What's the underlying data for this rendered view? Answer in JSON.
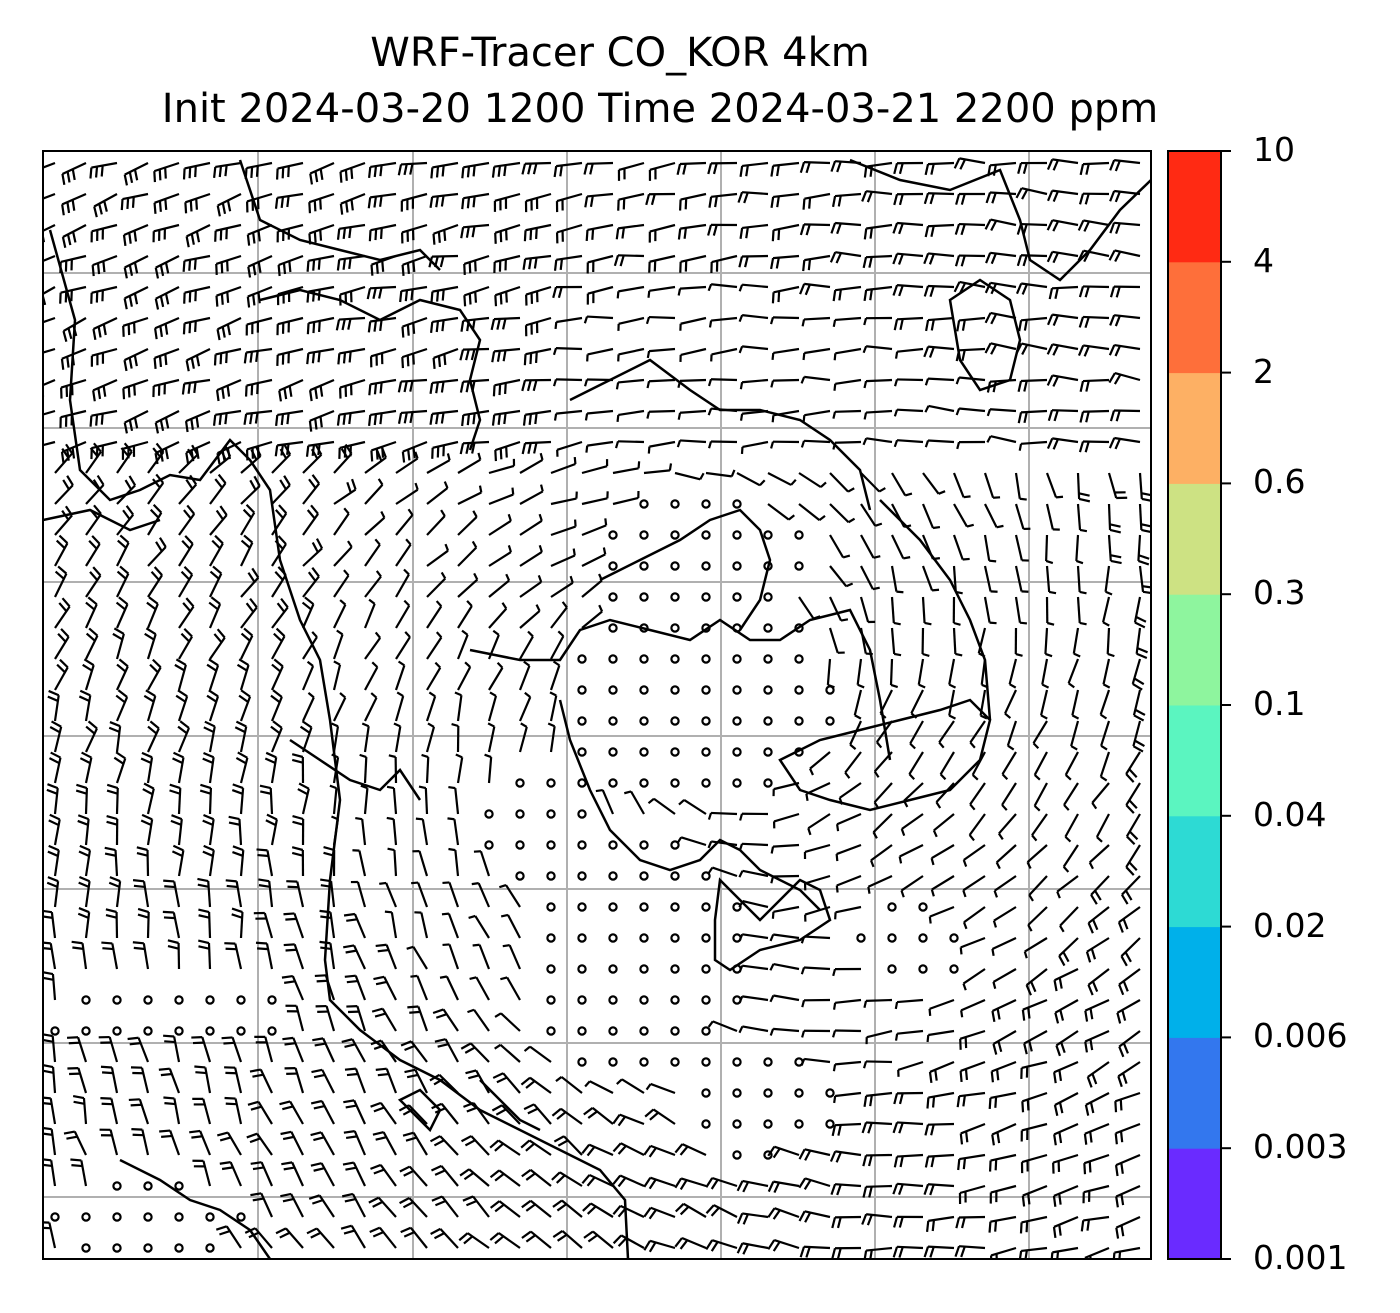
{
  "title": {
    "line1": "WRF-Tracer CO_KOR 4km",
    "line2": "Init 2024-03-20 1200 Time 2024-03-21 2200 ppm"
  },
  "colorbar": {
    "levels": [
      "0.001",
      "0.003",
      "0.006",
      "0.02",
      "0.04",
      "0.1",
      "0.3",
      "0.6",
      "2",
      "4",
      "10"
    ],
    "colors": [
      "#6a2bff",
      "#3377ee",
      "#00b0ea",
      "#2ddad4",
      "#5bf5c0",
      "#8ef59e",
      "#cde283",
      "#fdb064",
      "#fe6f3a",
      "#ff2a13"
    ]
  },
  "map": {
    "grid": true,
    "coastline_color": "#000000",
    "wind_barbs": true,
    "calm_marker": "circle"
  }
}
